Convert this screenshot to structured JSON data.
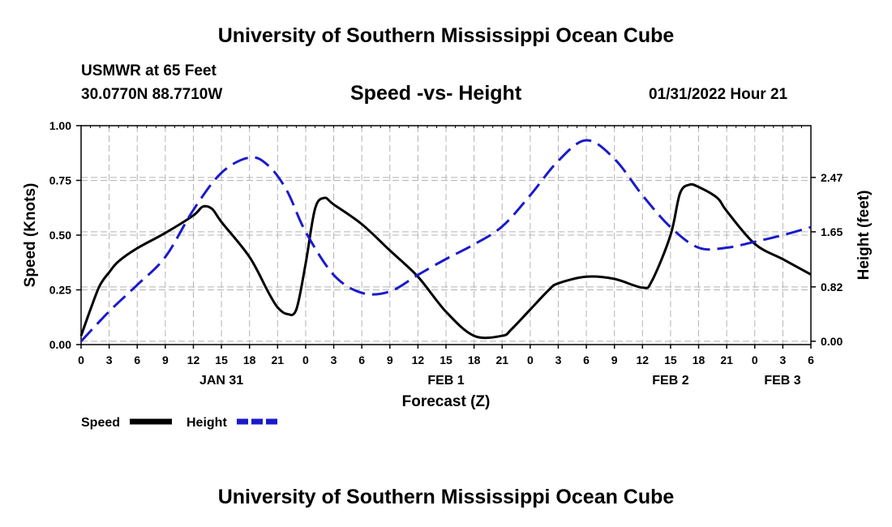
{
  "header": {
    "top_title": "University of Southern Mississippi Ocean Cube",
    "station": "USMWR at 65 Feet",
    "coords": "30.0770N  88.7710W",
    "chart_title": "Speed -vs- Height",
    "datetime": "01/31/2022 Hour 21",
    "bottom_title": "University of Southern Mississippi Ocean Cube"
  },
  "legend": {
    "speed_label": "Speed",
    "height_label": "Height"
  },
  "colors": {
    "speed": "#000000",
    "height": "#1a1acc",
    "grid": "#b4b4b4"
  },
  "chart_data": {
    "type": "line",
    "title": "Speed -vs- Height",
    "xlabel": "Forecast (Z)",
    "ylabel_left": "Speed (Knots)",
    "ylabel_right": "Height (feet)",
    "x_hour_range": [
      0,
      78
    ],
    "x_tick_labels": [
      "0",
      "3",
      "6",
      "9",
      "12",
      "15",
      "18",
      "21",
      "0",
      "3",
      "6",
      "9",
      "12",
      "15",
      "18",
      "21",
      "0",
      "3",
      "6",
      "9",
      "12",
      "15",
      "18",
      "21",
      "0",
      "3",
      "6"
    ],
    "date_labels": [
      {
        "hour": 15,
        "label": "JAN 31"
      },
      {
        "hour": 39,
        "label": "FEB 1"
      },
      {
        "hour": 63,
        "label": "FEB 2"
      },
      {
        "hour": 78,
        "label": "FEB 3"
      }
    ],
    "ylim_left": [
      0,
      1
    ],
    "y_left_ticks": [
      "0.00",
      "0.25",
      "0.50",
      "0.75",
      "1.00"
    ],
    "ylim_right": [
      -0.05,
      3.25
    ],
    "y_right_ticks": [
      "0.00",
      "0.82",
      "1.65",
      "2.47"
    ],
    "grid": true,
    "series": [
      {
        "name": "Speed",
        "axis": "left",
        "style": "solid",
        "x": [
          0,
          1,
          2,
          3,
          4,
          6,
          9,
          12,
          13,
          14,
          15,
          18,
          20,
          21,
          22,
          23,
          24,
          25,
          26,
          27,
          30,
          33,
          36,
          39,
          42,
          45,
          46,
          48,
          50,
          51,
          54,
          57,
          60,
          61,
          63,
          64,
          65,
          66,
          68,
          69,
          72,
          75,
          78
        ],
        "values": [
          0.04,
          0.16,
          0.27,
          0.33,
          0.38,
          0.44,
          0.51,
          0.59,
          0.63,
          0.62,
          0.56,
          0.4,
          0.24,
          0.17,
          0.14,
          0.16,
          0.37,
          0.62,
          0.67,
          0.64,
          0.55,
          0.43,
          0.31,
          0.15,
          0.04,
          0.04,
          0.07,
          0.16,
          0.25,
          0.28,
          0.31,
          0.3,
          0.26,
          0.29,
          0.5,
          0.69,
          0.73,
          0.72,
          0.67,
          0.61,
          0.46,
          0.39,
          0.32
        ]
      },
      {
        "name": "Height",
        "axis": "right",
        "style": "dashed",
        "x": [
          0,
          3,
          6,
          9,
          12,
          15,
          18,
          20,
          22,
          24,
          27,
          30,
          33,
          36,
          39,
          42,
          45,
          48,
          51,
          54,
          57,
          60,
          63,
          66,
          69,
          72,
          75,
          78
        ],
        "values": [
          0.0,
          0.45,
          0.85,
          1.27,
          1.98,
          2.54,
          2.77,
          2.65,
          2.27,
          1.65,
          1.0,
          0.73,
          0.75,
          1.0,
          1.24,
          1.46,
          1.73,
          2.2,
          2.72,
          3.03,
          2.75,
          2.2,
          1.72,
          1.41,
          1.41,
          1.5,
          1.6,
          1.72
        ]
      }
    ]
  }
}
